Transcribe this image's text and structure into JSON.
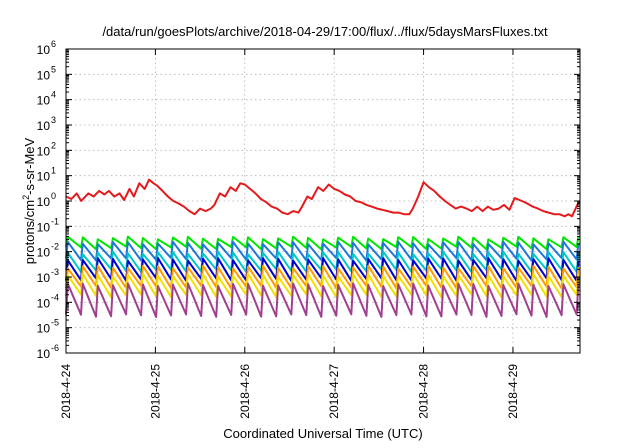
{
  "chart_data": {
    "type": "line",
    "title": "/data/run/goesPlots/archive/2018-04-29/17:00/flux/../flux/5daysMarsFluxes.txt",
    "xlabel": "Coordinated Universal Time (UTC)",
    "ylabel": {
      "prefix": "protons/cm",
      "sup": "2",
      "suffix": "-s-sr-MeV"
    },
    "yscale": "log",
    "ylim": [
      1e-06,
      1000000.0
    ],
    "xlim": [
      0,
      5.75
    ],
    "x_unit": "days since 2018-04-24 00:00 UTC",
    "grid": true,
    "xticks": [
      {
        "x": 0,
        "label": "2018-4-24"
      },
      {
        "x": 1,
        "label": "2018-4-25"
      },
      {
        "x": 2,
        "label": "2018-4-26"
      },
      {
        "x": 3,
        "label": "2018-4-27"
      },
      {
        "x": 4,
        "label": "2018-4-28"
      },
      {
        "x": 5,
        "label": "2018-4-29"
      }
    ],
    "yticks": [
      {
        "exp": -6,
        "label": "10",
        "sup": "-6"
      },
      {
        "exp": -5,
        "label": "10",
        "sup": "-5"
      },
      {
        "exp": -4,
        "label": "10",
        "sup": "-4"
      },
      {
        "exp": -3,
        "label": "10",
        "sup": "-3"
      },
      {
        "exp": -2,
        "label": "10",
        "sup": "-2"
      },
      {
        "exp": -1,
        "label": "10",
        "sup": "-1"
      },
      {
        "exp": 0,
        "label": "10",
        "sup": "0"
      },
      {
        "exp": 1,
        "label": "10",
        "sup": "1"
      },
      {
        "exp": 2,
        "label": "10",
        "sup": "2"
      },
      {
        "exp": 3,
        "label": "10",
        "sup": "3"
      },
      {
        "exp": 4,
        "label": "10",
        "sup": "4"
      },
      {
        "exp": 5,
        "label": "10",
        "sup": "5"
      },
      {
        "exp": 6,
        "label": "10",
        "sup": "6"
      }
    ],
    "series": [
      {
        "color": "#e41a1c",
        "x": [
          0,
          0.06,
          0.12,
          0.17,
          0.25,
          0.31,
          0.37,
          0.43,
          0.48,
          0.54,
          0.6,
          0.65,
          0.71,
          0.76,
          0.82,
          0.88,
          0.93,
          0.98,
          1.02,
          1.08,
          1.14,
          1.2,
          1.26,
          1.32,
          1.38,
          1.44,
          1.5,
          1.56,
          1.62,
          1.66,
          1.72,
          1.78,
          1.84,
          1.9,
          1.95,
          2.0,
          2.06,
          2.12,
          2.18,
          2.24,
          2.3,
          2.36,
          2.42,
          2.48,
          2.54,
          2.6,
          2.64,
          2.7,
          2.75,
          2.82,
          2.88,
          2.94,
          3.0,
          3.06,
          3.12,
          3.18,
          3.24,
          3.3,
          3.36,
          3.42,
          3.48,
          3.54,
          3.6,
          3.66,
          3.72,
          3.78,
          3.84,
          3.88,
          3.94,
          4.0,
          4.06,
          4.12,
          4.18,
          4.24,
          4.3,
          4.36,
          4.42,
          4.48,
          4.54,
          4.6,
          4.66,
          4.72,
          4.78,
          4.84,
          4.9,
          4.96,
          5.02,
          5.1,
          5.16,
          5.22,
          5.28,
          5.34,
          5.4,
          5.46,
          5.52,
          5.58,
          5.62,
          5.66,
          5.72,
          5.75
        ],
        "y": [
          1.5,
          1.2,
          2.0,
          1.0,
          2.0,
          1.5,
          2.5,
          1.8,
          2.5,
          1.5,
          2.0,
          1.1,
          3.0,
          1.5,
          5.0,
          3.0,
          7.0,
          5.0,
          4.0,
          2.5,
          1.5,
          1.0,
          0.8,
          0.6,
          0.4,
          0.3,
          0.5,
          0.4,
          0.5,
          0.7,
          2.0,
          1.5,
          3.5,
          2.5,
          5.0,
          4.5,
          3.0,
          2.0,
          1.2,
          0.9,
          0.6,
          0.5,
          0.35,
          0.3,
          0.4,
          0.35,
          0.6,
          1.5,
          1.2,
          3.5,
          2.5,
          4.5,
          3.0,
          2.5,
          1.8,
          1.5,
          1.0,
          0.9,
          0.7,
          0.6,
          0.5,
          0.45,
          0.4,
          0.35,
          0.35,
          0.3,
          0.3,
          0.5,
          1.5,
          5.5,
          3.5,
          2.5,
          1.5,
          1.0,
          0.7,
          0.5,
          0.6,
          0.5,
          0.4,
          0.6,
          0.4,
          0.6,
          0.45,
          0.5,
          0.7,
          0.45,
          1.3,
          1.0,
          0.8,
          0.6,
          0.5,
          0.4,
          0.35,
          0.3,
          0.3,
          0.25,
          0.3,
          0.25,
          0.7,
          1.0
        ]
      },
      {
        "color": "#00e600",
        "cycle_days": 0.168,
        "peak": 0.035,
        "trough": 0.014,
        "x_start": 0,
        "x_end": 5.75
      },
      {
        "color": "#1f78d6",
        "cycle_days": 0.168,
        "peak": 0.022,
        "trough": 0.005,
        "x_start": 0,
        "x_end": 5.75
      },
      {
        "color": "#00c8c8",
        "cycle_days": 0.168,
        "peak": 0.009,
        "trough": 0.0018,
        "x_start": 0,
        "x_end": 5.75
      },
      {
        "color": "#0000cd",
        "cycle_days": 0.168,
        "peak": 0.005,
        "trough": 0.0008,
        "x_start": 0,
        "x_end": 5.75
      },
      {
        "color": "#ff9900",
        "cycle_days": 0.168,
        "peak": 0.0025,
        "trough": 0.0004,
        "x_start": 0,
        "x_end": 5.75
      },
      {
        "color": "#f0e000",
        "cycle_days": 0.168,
        "peak": 0.0012,
        "trough": 0.00018,
        "x_start": 0,
        "x_end": 5.75
      },
      {
        "color": "#a04090",
        "cycle_days": 0.168,
        "peak": 0.0005,
        "trough": 3e-05,
        "x_start": 0,
        "x_end": 5.75
      }
    ]
  }
}
